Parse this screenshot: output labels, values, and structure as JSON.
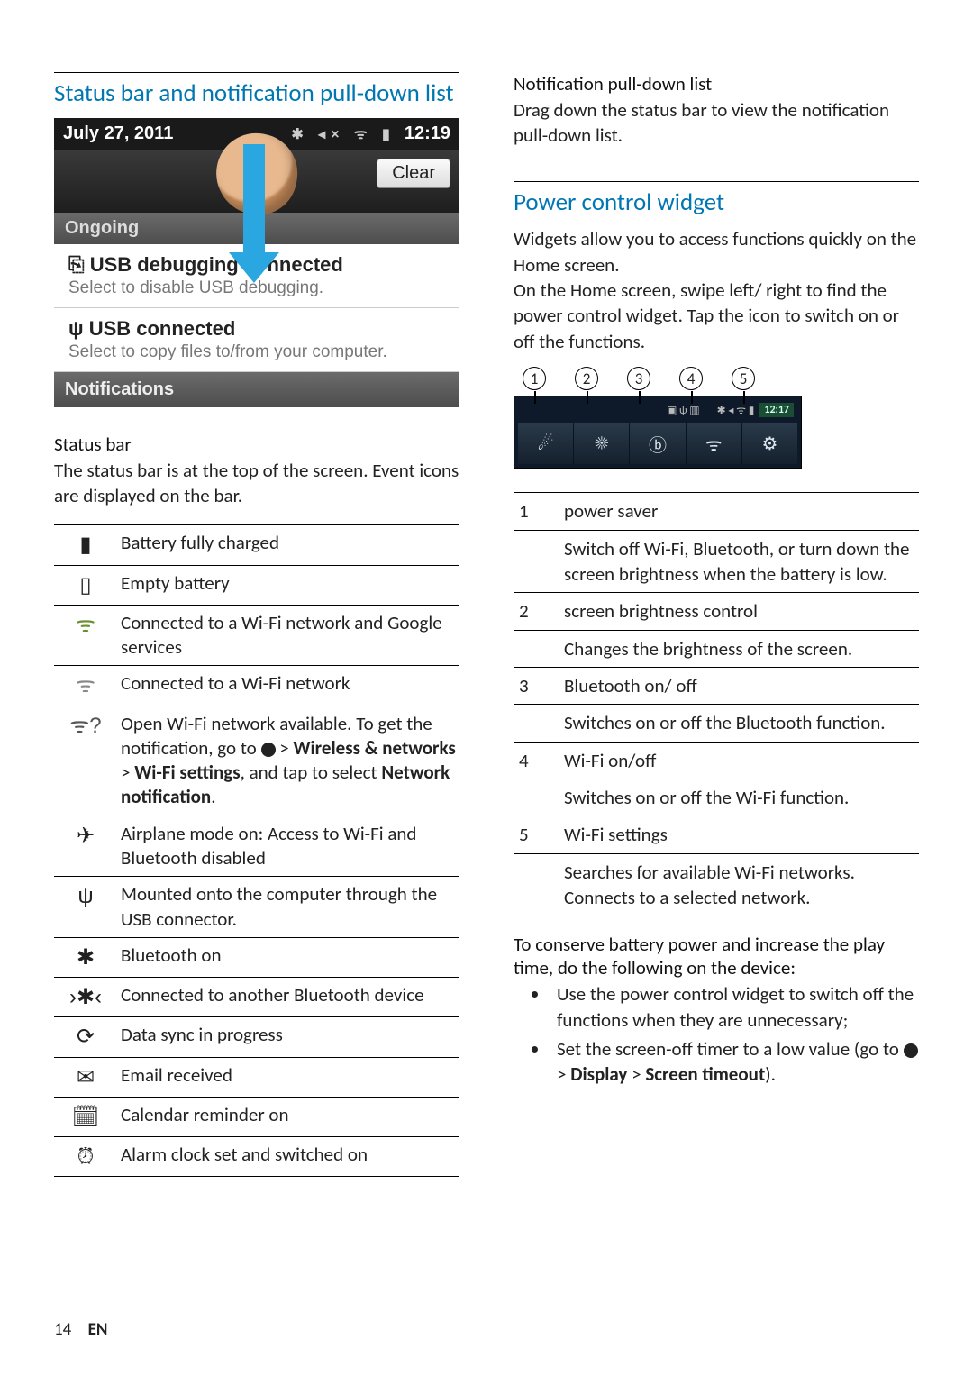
{
  "left": {
    "heading": "Status bar and notification pull-down list",
    "screenshot": {
      "date": "July 27, 2011",
      "time": "12:19",
      "clear": "Clear",
      "ongoing": "Ongoing",
      "item1_title": "USB debugging connected",
      "item1_sub": "Select to disable USB debugging.",
      "item2_title": "USB connected",
      "item2_sub": "Select to copy files to/from your computer.",
      "notifications": "Notifications"
    },
    "status_bar_head": "Status bar",
    "status_bar_body": "The status bar is at the top of the screen. Event icons are displayed on the bar.",
    "icon_rows": [
      {
        "icon": "▮",
        "text": "Battery fully charged"
      },
      {
        "icon": "▯",
        "text": "Empty battery"
      },
      {
        "icon": "ᯤ",
        "color": "#6a8f2e",
        "text": "Connected to a Wi-Fi network and Google services"
      },
      {
        "icon": "ᯤ",
        "color": "#888888",
        "text": "Connected to a Wi-Fi network"
      },
      {
        "icon": "ᯤ?",
        "color": "#555555",
        "html": "Open Wi-Fi network available. To get the notification, go to <span class='gear-icon'></span> > <span class='bold'>Wireless &amp; networks</span> > <span class='bold'>Wi-Fi settings</span>, and tap to select <span class='bold'>Network notification</span>."
      },
      {
        "icon": "✈",
        "text": "Airplane mode on: Access to Wi-Fi and Bluetooth disabled"
      },
      {
        "icon": "ψ",
        "text": "Mounted onto the computer through the USB connector."
      },
      {
        "icon": "✱",
        "text": "Bluetooth on"
      },
      {
        "icon": "›✱‹",
        "text": "Connected to another Bluetooth device"
      },
      {
        "icon": "⟳",
        "text": "Data sync in progress"
      },
      {
        "icon": "✉",
        "text": "Email received"
      },
      {
        "icon": "🗓︎",
        "text": "Calendar reminder on"
      },
      {
        "icon": "⏰︎",
        "text": "Alarm clock set and switched on"
      }
    ]
  },
  "right": {
    "notif_head": "Notification pull-down list",
    "notif_body": "Drag down the status bar to view the notification pull-down list.",
    "power_heading": "Power control widget",
    "power_intro1": "Widgets allow you to access functions quickly on the Home screen.",
    "power_intro2": "On the Home screen, swipe left/ right to find the power control widget. Tap the icon to switch on or off the functions.",
    "callouts": [
      "1",
      "2",
      "3",
      "4",
      "5"
    ],
    "widget_time": "12:17",
    "widget_icons": [
      "☄",
      "☀",
      "ⓑ",
      "ᯤ",
      "⚙"
    ],
    "rows": [
      {
        "n": "1",
        "title": "power saver",
        "desc": "Switch off Wi-Fi, Bluetooth, or turn down the screen brightness when the battery is low."
      },
      {
        "n": "2",
        "title": "screen brightness control",
        "desc": "Changes the brightness of the screen."
      },
      {
        "n": "3",
        "title": "Bluetooth on/ off",
        "desc": "Switches on or off the Bluetooth function."
      },
      {
        "n": "4",
        "title": "Wi-Fi on/off",
        "desc": "Switches on or off the Wi-Fi function."
      },
      {
        "n": "5",
        "title": "Wi-Fi settings",
        "desc": "Searches for available Wi-Fi networks. Connects to a selected network."
      }
    ],
    "conserve_head": "To conserve battery power and increase the play time, do the following on the device:",
    "bullets": [
      "Use the power control widget to switch off the functions when they are unnecessary;",
      "Set the screen-off timer to a low value (go to <span class='gear-icon'></span> > <span class='bold'>Display</span> > <span class='bold'>Screen timeout</span>)."
    ]
  },
  "footer": {
    "page": "14",
    "lang": "EN"
  }
}
